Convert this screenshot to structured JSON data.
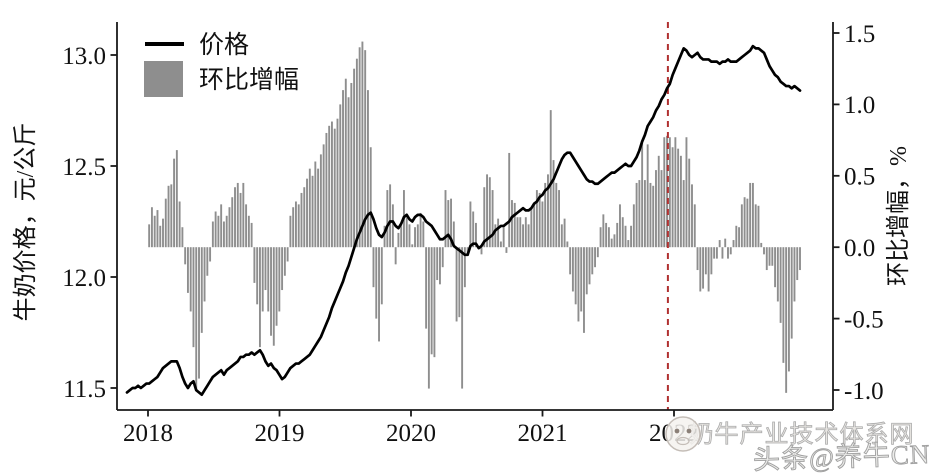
{
  "legend": {
    "price_label": "价格",
    "bar_label": "环比增幅"
  },
  "axes": {
    "left_title": "牛奶价格，元/公斤",
    "right_title": "环比增幅，%",
    "left_tick_labels": [
      "13.0",
      "12.5",
      "12.0",
      "11.5"
    ],
    "right_tick_labels": [
      "1.5",
      "1.0",
      "0.5",
      "0.0",
      "-0.5",
      "-1.0"
    ],
    "x_tick_labels": [
      "2018",
      "2019",
      "2020",
      "2021",
      "2022"
    ]
  },
  "watermark": {
    "line1": "奶牛产业技术体系网",
    "line2": "头条@养牛CN"
  },
  "colors": {
    "bar": "#8e8e8e",
    "price_line": "#000000",
    "vline": "#b03030",
    "axis": "#1a1a1a"
  },
  "chart_data": {
    "type": "line+bar",
    "title": "",
    "x_tick_years": [
      "2018",
      "2019",
      "2020",
      "2021",
      "2022"
    ],
    "left_ylabel": "牛奶价格，元/公斤",
    "right_ylabel": "环比增幅，%",
    "left_ylim": [
      11.5,
      13.0
    ],
    "right_ylim": [
      -1.0,
      1.5
    ],
    "legend_position": "top-left",
    "grid": false,
    "vline": {
      "style": "dashed",
      "color": "#b03030",
      "x_index": 195.3,
      "near_year": "2022"
    },
    "series": [
      {
        "name": "价格",
        "axis": "left",
        "type": "line",
        "unit": "元/公斤",
        "values": [
          11.48,
          11.49,
          11.5,
          11.5,
          11.51,
          11.5,
          11.51,
          11.52,
          11.52,
          11.53,
          11.54,
          11.55,
          11.57,
          11.59,
          11.6,
          11.61,
          11.62,
          11.62,
          11.62,
          11.59,
          11.55,
          11.52,
          11.5,
          11.52,
          11.53,
          11.49,
          11.48,
          11.47,
          11.49,
          11.51,
          11.53,
          11.55,
          11.56,
          11.57,
          11.58,
          11.56,
          11.58,
          11.59,
          11.6,
          11.61,
          11.62,
          11.64,
          11.64,
          11.65,
          11.65,
          11.66,
          11.65,
          11.66,
          11.67,
          11.65,
          11.62,
          11.6,
          11.61,
          11.59,
          11.58,
          11.56,
          11.54,
          11.55,
          11.57,
          11.59,
          11.6,
          11.61,
          11.61,
          11.62,
          11.63,
          11.64,
          11.65,
          11.67,
          11.69,
          11.71,
          11.73,
          11.76,
          11.79,
          11.82,
          11.86,
          11.89,
          11.92,
          11.95,
          11.98,
          12.02,
          12.05,
          12.09,
          12.13,
          12.17,
          12.2,
          12.23,
          12.26,
          12.28,
          12.29,
          12.26,
          12.22,
          12.19,
          12.18,
          12.2,
          12.23,
          12.25,
          12.25,
          12.23,
          12.22,
          12.24,
          12.27,
          12.28,
          12.26,
          12.25,
          12.27,
          12.28,
          12.28,
          12.27,
          12.25,
          12.24,
          12.23,
          12.21,
          12.19,
          12.17,
          12.17,
          12.18,
          12.19,
          12.17,
          12.14,
          12.13,
          12.12,
          12.11,
          12.1,
          12.1,
          12.14,
          12.15,
          12.15,
          12.13,
          12.14,
          12.16,
          12.17,
          12.18,
          12.19,
          12.21,
          12.22,
          12.23,
          12.23,
          12.24,
          12.25,
          12.27,
          12.28,
          12.29,
          12.3,
          12.31,
          12.3,
          12.3,
          12.31,
          12.33,
          12.34,
          12.36,
          12.37,
          12.39,
          12.4,
          12.42,
          12.44,
          12.47,
          12.5,
          12.53,
          12.55,
          12.56,
          12.56,
          12.54,
          12.52,
          12.5,
          12.48,
          12.46,
          12.44,
          12.43,
          12.43,
          12.42,
          12.42,
          12.43,
          12.44,
          12.45,
          12.46,
          12.47,
          12.47,
          12.48,
          12.49,
          12.5,
          12.51,
          12.5,
          12.5,
          12.52,
          12.54,
          12.57,
          12.61,
          12.64,
          12.68,
          12.7,
          12.72,
          12.75,
          12.77,
          12.8,
          12.82,
          12.85,
          12.87,
          12.91,
          12.94,
          12.97,
          13.0,
          13.03,
          13.02,
          13.0,
          12.99,
          13.0,
          13.01,
          12.99,
          12.98,
          12.98,
          12.98,
          12.97,
          12.97,
          12.97,
          12.96,
          12.97,
          12.97,
          12.98,
          12.97,
          12.97,
          12.97,
          12.98,
          12.99,
          13.0,
          13.01,
          13.02,
          13.04,
          13.03,
          13.03,
          13.02,
          13.01,
          12.98,
          12.95,
          12.93,
          12.91,
          12.9,
          12.88,
          12.87,
          12.86,
          12.86,
          12.85,
          12.86,
          12.85,
          12.84
        ]
      },
      {
        "name": "环比增幅",
        "axis": "right",
        "type": "bar",
        "unit": "%",
        "values": [
          0,
          0,
          0,
          0,
          0,
          0,
          0,
          0,
          0.16,
          0.28,
          0.22,
          0.26,
          0.15,
          0.2,
          0.34,
          0.43,
          0.44,
          0.62,
          0.68,
          0.32,
          0.14,
          -0.12,
          -0.32,
          -0.45,
          -0.7,
          -1.0,
          -0.92,
          -0.6,
          -0.38,
          -0.2,
          -0.1,
          0.18,
          0.25,
          0.22,
          0.3,
          0.18,
          0.22,
          0.28,
          0.35,
          0.42,
          0.45,
          0.38,
          0.45,
          0.3,
          0.22,
          0.17,
          -0.25,
          -0.4,
          -0.7,
          -0.45,
          -0.3,
          -0.45,
          -0.62,
          -0.69,
          -0.55,
          -0.45,
          -0.3,
          -0.2,
          -0.1,
          0.22,
          0.28,
          0.32,
          0.3,
          0.38,
          0.42,
          0.48,
          0.55,
          0.5,
          0.6,
          0.55,
          0.65,
          0.72,
          0.8,
          0.85,
          0.88,
          0.83,
          0.9,
          1.0,
          1.1,
          1.18,
          1.05,
          1.15,
          1.25,
          1.32,
          1.4,
          1.44,
          1.38,
          1.1,
          0.7,
          -0.28,
          -0.5,
          -0.66,
          -0.4,
          0.15,
          0.4,
          0.44,
          0.3,
          -0.12,
          0.1,
          0.16,
          0.4,
          0.21,
          0.16,
          0.02,
          0.14,
          0.16,
          0.24,
          0.18,
          -0.57,
          -0.99,
          -0.75,
          -0.77,
          -0.23,
          -0.26,
          -0.14,
          0.4,
          0.33,
          0.34,
          0.18,
          -0.52,
          -0.49,
          -0.99,
          -0.28,
          -0.05,
          0.32,
          0.25,
          0.17,
          0.0,
          -0.05,
          0.42,
          0.51,
          0.49,
          0.4,
          0.16,
          0.2,
          0.04,
          0.14,
          -0.04,
          0.66,
          0.33,
          0.31,
          0.21,
          0.21,
          0.16,
          0.21,
          0.16,
          0.27,
          0.31,
          0.4,
          0.38,
          0.32,
          0.45,
          0.51,
          0.96,
          0.61,
          0.45,
          0.4,
          0.16,
          0.2,
          0.04,
          -0.19,
          -0.31,
          -0.4,
          -0.52,
          -0.45,
          -0.6,
          -0.33,
          -0.26,
          -0.19,
          -0.14,
          -0.07,
          0.14,
          0.23,
          0.17,
          0.14,
          0.06,
          0.09,
          0.17,
          0.3,
          0.21,
          0.15,
          0.05,
          0.15,
          0.3,
          0.45,
          0.47,
          0.73,
          0.47,
          0.72,
          0.45,
          0.43,
          0.54,
          0.64,
          0.54,
          0.77,
          0.78,
          0.77,
          0.7,
          0.77,
          0.69,
          0.64,
          0.47,
          0.77,
          0.62,
          0.44,
          0.3,
          -0.16,
          -0.31,
          -0.29,
          -0.19,
          -0.31,
          -0.19,
          -0.08,
          -0.08,
          0.05,
          -0.08,
          0.06,
          -0.08,
          -0.05,
          0.05,
          0.15,
          0.14,
          0.3,
          0.35,
          0.34,
          0.45,
          0.45,
          0.3,
          0.29,
          0.03,
          -0.05,
          -0.16,
          -0.13,
          -0.13,
          -0.28,
          -0.38,
          -0.53,
          -0.81,
          -1.02,
          -0.87,
          -0.64,
          -0.38,
          -0.23,
          -0.16
        ]
      }
    ]
  }
}
